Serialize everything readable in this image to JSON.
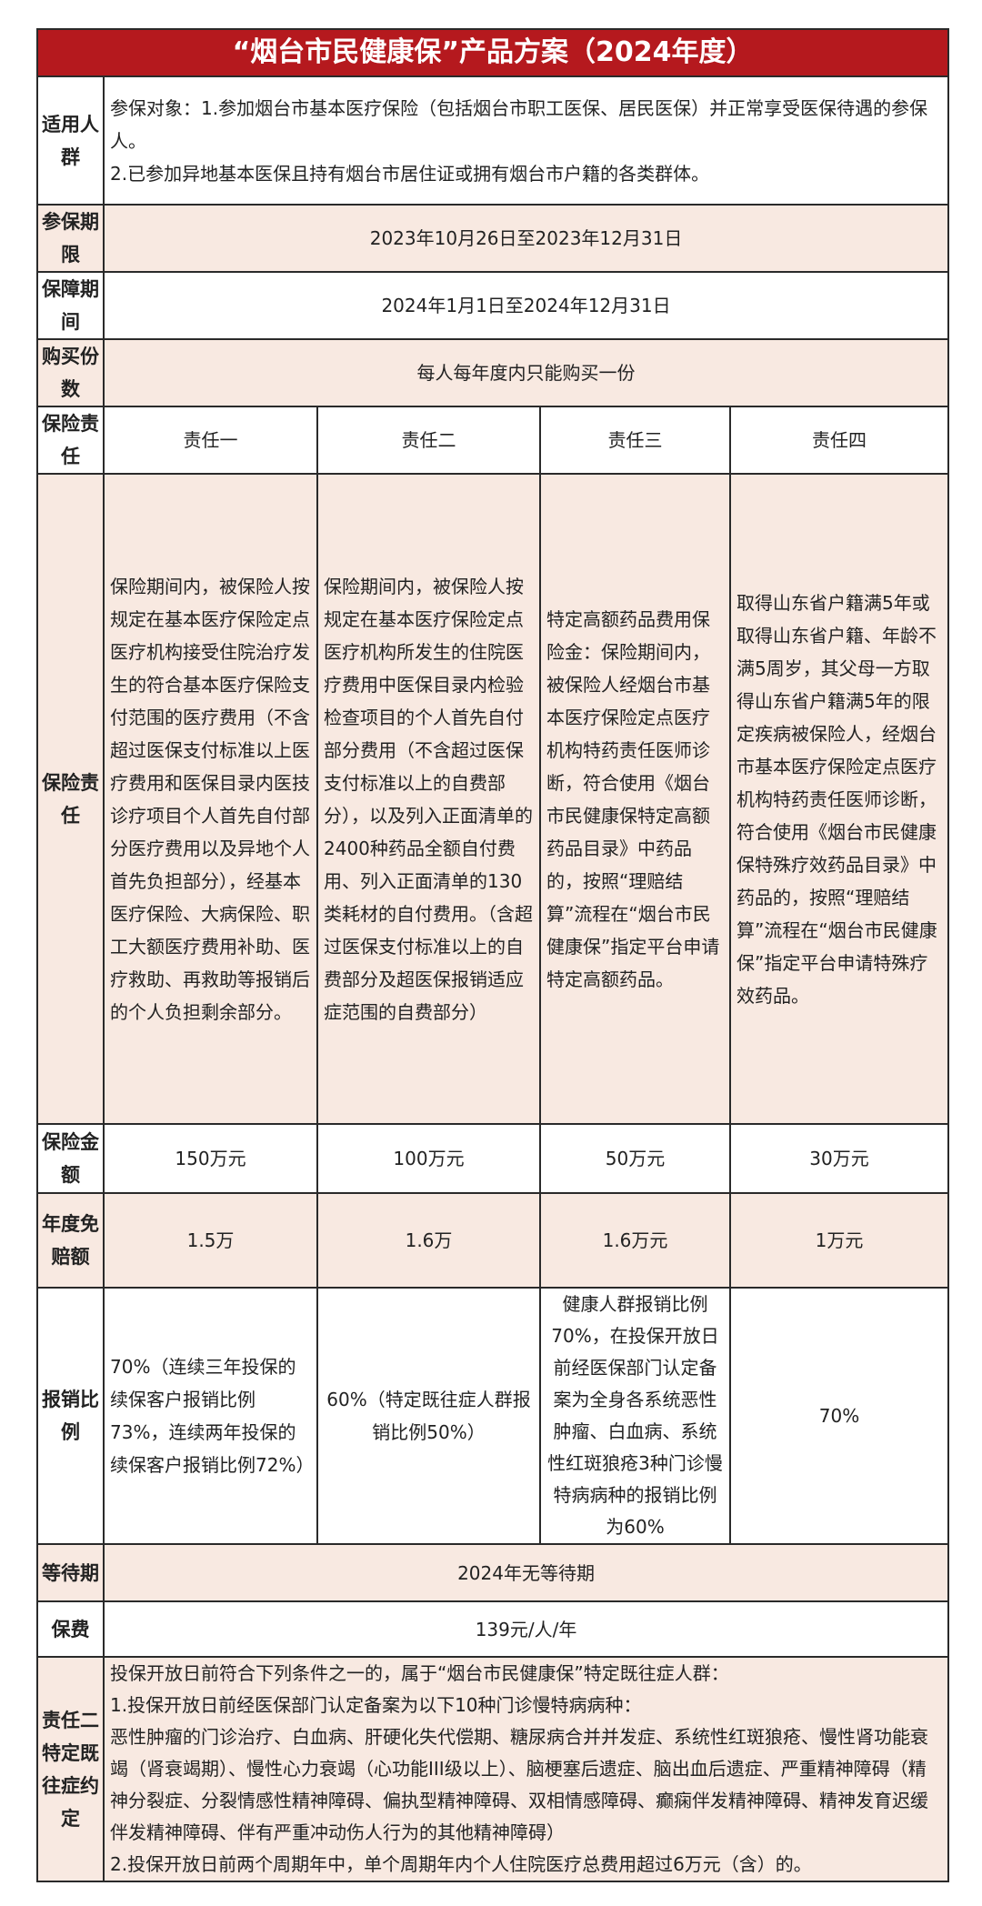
{
  "title": "“烟台市民健康保”产品方案（2024年度）",
  "colors": {
    "header_red": "#b5191e",
    "row_peach": "#f8e9e1",
    "border": "#2a2a2a"
  },
  "rows": {
    "eligible": {
      "label": "适用人群",
      "lines": [
        "参保对象：1.参加烟台市基本医疗保险（包括烟台市职工医保、居民医保）并正常享受医保待遇的参保人。",
        "2.已参加异地基本医保且持有烟台市居住证或拥有烟台市户籍的各类群体。"
      ]
    },
    "enroll_period": {
      "label": "参保期限",
      "value": "2023年10月26日至2023年12月31日"
    },
    "coverage_period": {
      "label": "保障期间",
      "value": "2024年1月1日至2024年12月31日"
    },
    "purchase_count": {
      "label": "购买份数",
      "value": "每人每年度内只能购买一份"
    },
    "liability_header": {
      "label": "保险责任",
      "columns": [
        "责任一",
        "责任二",
        "责任三",
        "责任四"
      ]
    },
    "liability_detail": {
      "label": "保险责任",
      "values": [
        "保险期间内，被保险人按规定在基本医疗保险定点医疗机构接受住院治疗发生的符合基本医疗保险支付范围的医疗费用（不含超过医保支付标准以上医疗费用和医保目录内医技诊疗项目个人首先自付部分医疗费用以及异地个人首先负担部分），经基本医疗保险、大病保险、职工大额医疗费用补助、医疗救助、再救助等报销后的个人负担剩余部分。",
        "保险期间内，被保险人按规定在基本医疗保险定点医疗机构所发生的住院医疗费用中医保目录内检验检查项目的个人首先自付部分费用（不含超过医保支付标准以上的自费部分），以及列入正面清单的2400种药品全额自付费用、列入正面清单的130类耗材的自付费用。（含超过医保支付标准以上的自费部分及超医保报销适应症范围的自费部分）",
        "特定高额药品费用保险金：保险期间内，被保险人经烟台市基本医疗保险定点医疗机构特药责任医师诊断，符合使用《烟台市民健康保特定高额药品目录》中药品的，按照“理赔结算”流程在“烟台市民健康保”指定平台申请特定高额药品。",
        "取得山东省户籍满5年或取得山东省户籍、年龄不满5周岁，其父母一方取得山东省户籍满5年的限定疾病被保险人，经烟台市基本医疗保险定点医疗机构特药责任医师诊断，符合使用《烟台市民健康保特殊疗效药品目录》中药品的，按照“理赔结算”流程在“烟台市民健康保”指定平台申请特殊疗效药品。"
      ]
    },
    "sum_insured": {
      "label": "保险金额",
      "values": [
        "150万元",
        "100万元",
        "50万元",
        "30万元"
      ]
    },
    "deductible": {
      "label": "年度免赔额",
      "values": [
        "1.5万",
        "1.6万",
        "1.6万元",
        "1万元"
      ]
    },
    "reimbursement": {
      "label": "报销比例",
      "values": [
        "70%（连续三年投保的续保客户报销比例73%，连续两年投保的续保客户报销比例72%）",
        "60%（特定既往症人群报销比例50%）",
        "健康人群报销比例70%，在投保开放日前经医保部门认定备案为全身各系统恶性肿瘤、白血病、系统性红斑狼疮3种门诊慢特病病种的报销比例为60%",
        "70%"
      ]
    },
    "waiting_period": {
      "label": "等待期",
      "value": "2024年无等待期"
    },
    "premium": {
      "label": "保费",
      "value": "139元/人/年"
    },
    "preexisting": {
      "label": "责任二特定既往症约定",
      "lines": [
        "投保开放日前符合下列条件之一的，属于“烟台市民健康保”特定既往症人群：",
        "1.投保开放日前经医保部门认定备案为以下10种门诊慢特病病种：",
        "恶性肿瘤的门诊治疗、白血病、肝硬化失代偿期、糖尿病合并并发症、系统性红斑狼疮、慢性肾功能衰竭（肾衰竭期）、慢性心力衰竭（心功能III级以上）、脑梗塞后遗症、脑出血后遗症、严重精神障碍（精神分裂症、分裂情感性精神障碍、偏执型精神障碍、双相情感障碍、癫痫伴发精神障碍、精神发育迟缓伴发精神障碍、伴有严重冲动伤人行为的其他精神障碍）",
        "2.投保开放日前两个周期年中，单个周期年内个人住院医疗总费用超过6万元（含）的。"
      ]
    }
  }
}
